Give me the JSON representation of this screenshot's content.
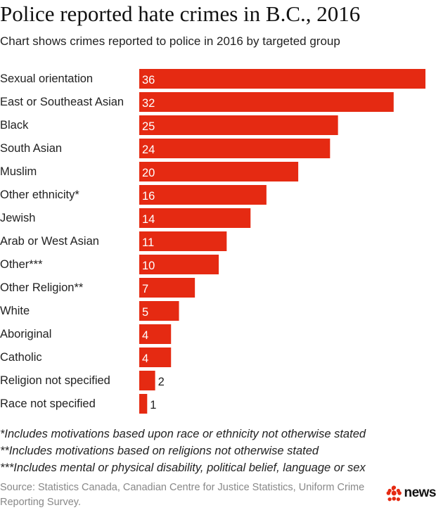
{
  "title": "Police reported hate crimes in B.C., 2016",
  "subtitle": "Chart shows crimes reported to police in 2016 by targeted group",
  "chart_data": {
    "type": "bar",
    "orientation": "horizontal",
    "categories": [
      "Sexual orientation",
      "East or Southeast Asian",
      "Black",
      "South Asian",
      "Muslim",
      "Other ethnicity*",
      "Jewish",
      "Arab or West Asian",
      "Other***",
      "Other Religion**",
      "White",
      "Aboriginal",
      "Catholic",
      "Religion not specified",
      "Race not specified"
    ],
    "values": [
      36,
      32,
      25,
      24,
      20,
      16,
      14,
      11,
      10,
      7,
      5,
      4,
      4,
      2,
      1
    ],
    "data_labels": [
      "36",
      "32",
      "25",
      "24",
      "20",
      "16",
      "14",
      "11",
      "10",
      "7",
      "5",
      "4",
      "4",
      "2",
      "1"
    ],
    "xlim": [
      0,
      36
    ],
    "grid": false,
    "bar_color": "#e52a12"
  },
  "footnotes": [
    "*Includes motivations based upon race or ethnicity not otherwise stated",
    "**Includes motivations based on religions not otherwise stated",
    "***Includes mental or physical disability, political belief, language or sex"
  ],
  "source": "Source: Statistics Canada, Canadian Centre for Justice Statistics, Uniform Crime Reporting Survey.",
  "logo": {
    "text": "news",
    "icon": "cbc-gem-icon",
    "color": "#e52a12"
  }
}
